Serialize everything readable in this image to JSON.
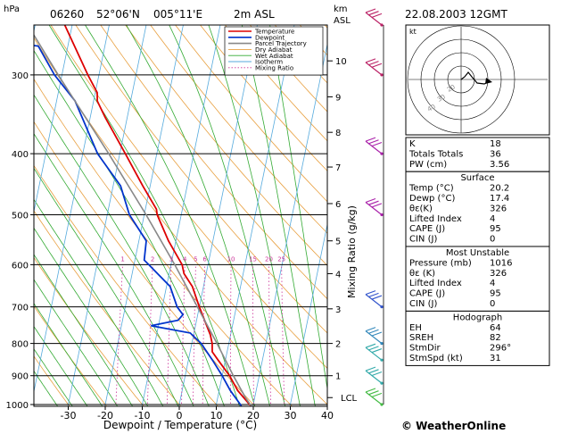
{
  "header": {
    "station": "06260",
    "lat": "52°06'N",
    "lon": "005°11'E",
    "elevation": "2m ASL",
    "datetime": "22.08.2003 12GMT",
    "pressure_unit": "hPa",
    "height_unit_top": "km",
    "height_unit_bottom": "ASL"
  },
  "legend": [
    {
      "label": "Temperature",
      "color": "#dd0000",
      "style": "solid"
    },
    {
      "label": "Dewpoint",
      "color": "#0033cc",
      "style": "solid"
    },
    {
      "label": "Parcel Trajectory",
      "color": "#888888",
      "style": "solid"
    },
    {
      "label": "Dry Adiabat",
      "color": "#e8a040",
      "style": "solid"
    },
    {
      "label": "Wet Adiabat",
      "color": "#33aa33",
      "style": "solid"
    },
    {
      "label": "Isotherm",
      "color": "#55aadd",
      "style": "solid"
    },
    {
      "label": "Mixing Ratio",
      "color": "#cc3399",
      "style": "dotted"
    }
  ],
  "chart_data": {
    "type": "line",
    "xlabel": "Dewpoint / Temperature (°C)",
    "ylabel_right": "Mixing Ratio (g/kg)",
    "xlim": [
      -35,
      40
    ],
    "ylim": [
      1000,
      250
    ],
    "skew_deg_per_decade": 35,
    "x_ticks": [
      "-30",
      "-20",
      "-10",
      "0",
      "10",
      "20",
      "30",
      "40"
    ],
    "pressure_ticks": [
      "300",
      "400",
      "500",
      "600",
      "700",
      "800",
      "900",
      "1000"
    ],
    "height_ticks": [
      {
        "label": "10",
        "p": 285
      },
      {
        "label": "9",
        "p": 325
      },
      {
        "label": "8",
        "p": 370
      },
      {
        "label": "7",
        "p": 420
      },
      {
        "label": "6",
        "p": 480
      },
      {
        "label": "5",
        "p": 550
      },
      {
        "label": "4",
        "p": 620
      },
      {
        "label": "3",
        "p": 705
      },
      {
        "label": "2",
        "p": 800
      },
      {
        "label": "1",
        "p": 900
      }
    ],
    "lcl": {
      "label": "LCL",
      "p": 975
    },
    "mixing_ratio_labels": [
      "1",
      "2",
      "3",
      "4",
      "5",
      "6",
      "10",
      "15",
      "20",
      "25"
    ],
    "mixing_ratio_values": [
      1,
      2,
      3,
      4,
      5,
      6,
      10,
      15,
      20,
      25
    ],
    "series": [
      {
        "name": "Temperature",
        "color": "#dd0000",
        "points": [
          [
            1016,
            20.2
          ],
          [
            1000,
            19.0
          ],
          [
            950,
            15.0
          ],
          [
            900,
            12.0
          ],
          [
            850,
            8.0
          ],
          [
            825,
            6.0
          ],
          [
            800,
            5.5
          ],
          [
            775,
            4.5
          ],
          [
            700,
            0.0
          ],
          [
            650,
            -3.0
          ],
          [
            620,
            -6.0
          ],
          [
            600,
            -7.0
          ],
          [
            550,
            -12.0
          ],
          [
            500,
            -16.5
          ],
          [
            490,
            -17.0
          ],
          [
            450,
            -22.0
          ],
          [
            400,
            -28.5
          ],
          [
            350,
            -36.0
          ],
          [
            330,
            -39.0
          ],
          [
            320,
            -39.5
          ],
          [
            300,
            -43.0
          ],
          [
            250,
            -52.0
          ]
        ]
      },
      {
        "name": "Dewpoint",
        "color": "#0033cc",
        "points": [
          [
            1016,
            17.4
          ],
          [
            1000,
            16.5
          ],
          [
            950,
            13.0
          ],
          [
            900,
            10.0
          ],
          [
            850,
            6.5
          ],
          [
            800,
            2.5
          ],
          [
            770,
            -1.0
          ],
          [
            750,
            -12.0
          ],
          [
            735,
            -5.0
          ],
          [
            720,
            -4.0
          ],
          [
            700,
            -6.0
          ],
          [
            650,
            -9.0
          ],
          [
            600,
            -16.0
          ],
          [
            590,
            -17.5
          ],
          [
            550,
            -18.0
          ],
          [
            500,
            -24.0
          ],
          [
            450,
            -28.0
          ],
          [
            400,
            -36.0
          ],
          [
            330,
            -45.0
          ],
          [
            300,
            -52.0
          ],
          [
            270,
            -58.0
          ],
          [
            265,
            -70.0
          ],
          [
            250,
            -75.0
          ]
        ]
      },
      {
        "name": "Parcel Trajectory",
        "color": "#888888",
        "points": [
          [
            1016,
            20.2
          ],
          [
            975,
            17.5
          ],
          [
            900,
            13.0
          ],
          [
            850,
            10.0
          ],
          [
            800,
            6.8
          ],
          [
            700,
            -0.5
          ],
          [
            600,
            -9.0
          ],
          [
            500,
            -19.5
          ],
          [
            400,
            -33.0
          ],
          [
            300,
            -51.0
          ],
          [
            250,
            -62.0
          ]
        ]
      }
    ]
  },
  "winds": [
    {
      "p": 1000,
      "color": "#44bb44"
    },
    {
      "p": 925,
      "color": "#33aaaa"
    },
    {
      "p": 850,
      "color": "#33aaaa"
    },
    {
      "p": 800,
      "color": "#3388bb"
    },
    {
      "p": 700,
      "color": "#3355cc"
    },
    {
      "p": 500,
      "color": "#aa22aa"
    },
    {
      "p": 400,
      "color": "#aa22aa"
    },
    {
      "p": 300,
      "color": "#bb2266"
    },
    {
      "p": 250,
      "color": "#bb2266"
    }
  ],
  "hodograph": {
    "unit": "kt",
    "ring_labels": [
      "20",
      "30",
      "40"
    ]
  },
  "indices": {
    "top": [
      {
        "label": "K",
        "value": "18"
      },
      {
        "label": "Totals Totals",
        "value": "36"
      },
      {
        "label": "PW (cm)",
        "value": "3.56"
      }
    ],
    "surface_title": "Surface",
    "surface": [
      {
        "label": "Temp (°C)",
        "value": "20.2"
      },
      {
        "label": "Dewp (°C)",
        "value": "17.4"
      },
      {
        "label": "θε(K)",
        "value": "326"
      },
      {
        "label": "Lifted Index",
        "value": "4"
      },
      {
        "label": "CAPE (J)",
        "value": "95"
      },
      {
        "label": "CIN (J)",
        "value": "0"
      }
    ],
    "mu_title": "Most Unstable",
    "mu": [
      {
        "label": "Pressure (mb)",
        "value": "1016"
      },
      {
        "label": "θε (K)",
        "value": "326"
      },
      {
        "label": "Lifted Index",
        "value": "4"
      },
      {
        "label": "CAPE (J)",
        "value": "95"
      },
      {
        "label": "CIN (J)",
        "value": "0"
      }
    ],
    "hodo_title": "Hodograph",
    "hodo": [
      {
        "label": "EH",
        "value": "64"
      },
      {
        "label": "SREH",
        "value": "82"
      },
      {
        "label": "StmDir",
        "value": "296°"
      },
      {
        "label": "StmSpd (kt)",
        "value": "31"
      }
    ]
  },
  "footer": {
    "brand": "© WeatherOnline"
  }
}
